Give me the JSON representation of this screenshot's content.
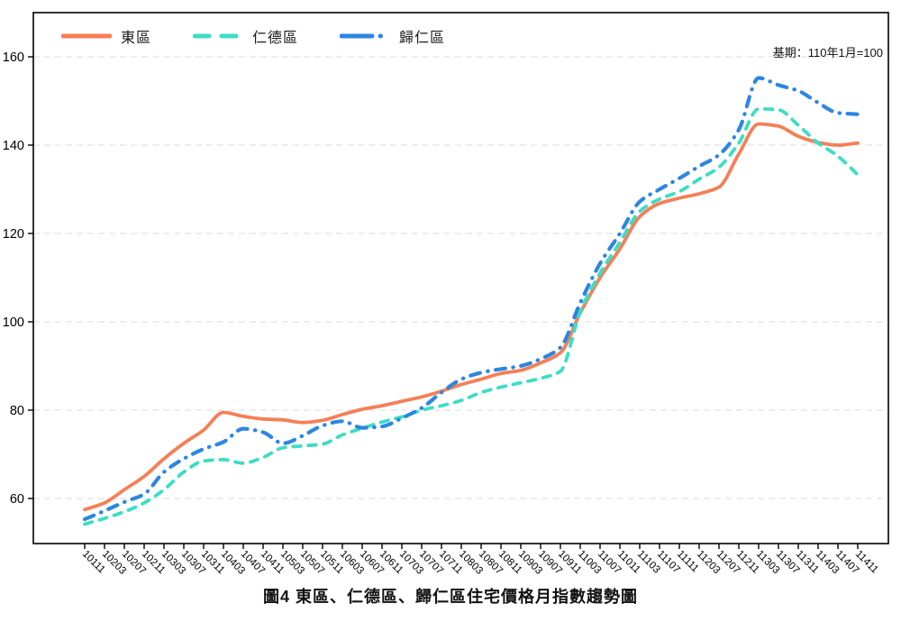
{
  "chart_data": {
    "type": "line",
    "title": "圖4 東區、仁德區、歸仁區住宅價格月指數趨勢圖",
    "base_note": "基期：110年1月=100",
    "xlabel": "",
    "ylabel": "",
    "ylim": [
      50,
      170
    ],
    "yticks": [
      60,
      80,
      100,
      120,
      140,
      160
    ],
    "grid": "horizontal-dashed",
    "grid_color": "#d6dede",
    "legend_position": "top-left-horizontal",
    "axis_color": "#000000",
    "categories": [
      "10111",
      "10203",
      "10207",
      "10211",
      "10303",
      "10307",
      "10311",
      "10403",
      "10407",
      "10411",
      "10503",
      "10507",
      "10511",
      "10603",
      "10607",
      "10611",
      "10703",
      "10707",
      "10711",
      "10803",
      "10807",
      "10811",
      "10903",
      "10907",
      "10911",
      "11003",
      "11007",
      "11011",
      "11103",
      "11107",
      "11111",
      "11203",
      "11207",
      "11211",
      "11303",
      "11307",
      "11311",
      "11403",
      "11407",
      "11411"
    ],
    "series": [
      {
        "name": "東區",
        "color": "#F57F57",
        "style": "solid",
        "values": [
          57.5,
          59.0,
          62.0,
          65.0,
          69.0,
          72.5,
          75.5,
          79.5,
          78.6,
          78.0,
          77.8,
          77.2,
          77.7,
          79.0,
          80.2,
          81.0,
          82.0,
          83.0,
          84.3,
          85.8,
          87.0,
          88.3,
          89.0,
          90.7,
          93.0,
          102.0,
          110.0,
          116.5,
          123.8,
          126.8,
          128.0,
          129.0,
          130.5,
          138.0,
          144.8,
          144.3,
          142.0,
          140.6,
          140.0,
          140.5
        ]
      },
      {
        "name": "仁德區",
        "color": "#3DDDC4",
        "style": "dashed",
        "values": [
          54.2,
          55.5,
          57.0,
          59.0,
          62.0,
          66.0,
          68.5,
          68.8,
          68.0,
          69.3,
          71.5,
          71.9,
          72.3,
          74.4,
          75.9,
          77.3,
          78.5,
          80.0,
          81.0,
          82.2,
          84.0,
          85.2,
          86.2,
          87.2,
          88.8,
          102.3,
          111.0,
          118.0,
          125.0,
          127.8,
          129.5,
          132.3,
          135.0,
          140.5,
          148.2,
          148.0,
          144.5,
          140.5,
          137.5,
          133.3
        ]
      },
      {
        "name": "歸仁區",
        "color": "#2D86E0",
        "style": "dash-dot",
        "values": [
          55.3,
          57.2,
          59.2,
          61.0,
          66.0,
          69.0,
          71.2,
          72.8,
          75.8,
          75.0,
          72.5,
          74.2,
          76.5,
          77.5,
          76.0,
          76.3,
          78.2,
          80.5,
          84.0,
          87.0,
          88.5,
          89.3,
          90.0,
          91.6,
          94.2,
          104.3,
          113.2,
          120.0,
          127.2,
          130.0,
          132.5,
          135.2,
          137.8,
          143.5,
          155.2,
          153.6,
          152.3,
          149.6,
          147.3,
          147.0
        ]
      }
    ]
  }
}
